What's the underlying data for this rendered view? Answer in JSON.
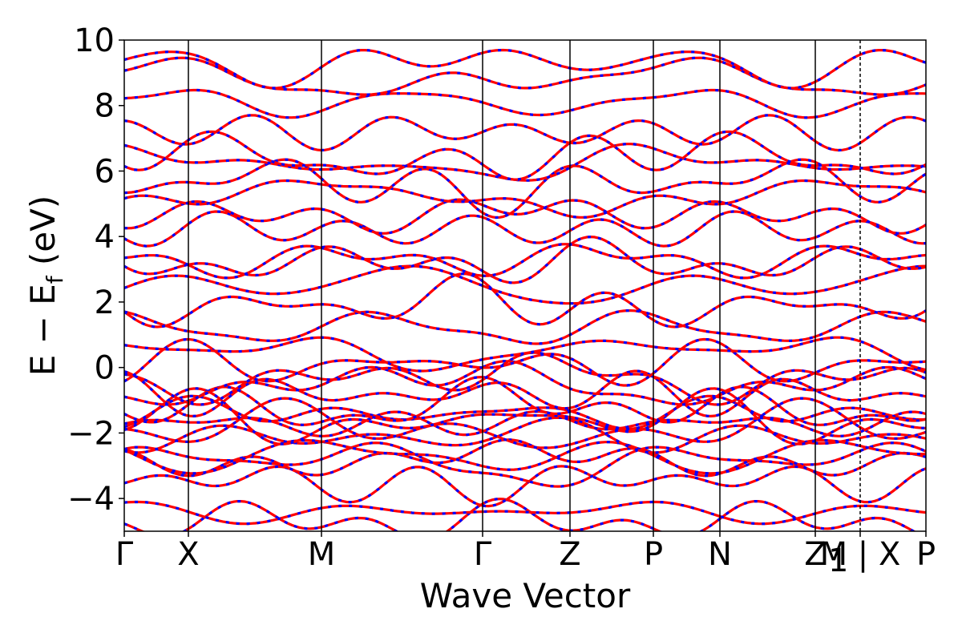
{
  "chart_data": {
    "type": "line",
    "title": "",
    "xlabel": "Wave Vector",
    "ylabel": "E − E",
    "ylabel_sub": "f",
    "ylabel_unit": " (eV)",
    "ylim": [
      -5,
      10
    ],
    "yticks": [
      -4,
      -2,
      0,
      2,
      4,
      6,
      8,
      10
    ],
    "ytick_labels": [
      "−4",
      "−2",
      "0",
      "2",
      "4",
      "6",
      "8",
      "10"
    ],
    "xlim": [
      0,
      1
    ],
    "kpoints": [
      {
        "x": 0.0,
        "label": "Γ"
      },
      {
        "x": 0.08,
        "label": "X"
      },
      {
        "x": 0.246,
        "label": "M"
      },
      {
        "x": 0.447,
        "label": "Γ"
      },
      {
        "x": 0.556,
        "label": "Z"
      },
      {
        "x": 0.66,
        "label": "P"
      },
      {
        "x": 0.743,
        "label": "N"
      },
      {
        "x": 0.862,
        "label": "Z"
      },
      {
        "x": 0.918,
        "label": "M | X"
      },
      {
        "x": 1.0,
        "label": "P"
      }
    ],
    "kpoint_subscripts": [
      {
        "after_label_index": 7,
        "text": "1"
      }
    ],
    "grid": false,
    "series_styles": [
      {
        "name": "",
        "color": "#ff0000",
        "style": "solid"
      },
      {
        "name": "",
        "color": "#0000ff",
        "style": "dashed"
      }
    ],
    "band_energies_at_gamma": [
      -4.7,
      -4.4,
      -3.5,
      -2.9,
      -2.8,
      -2.7,
      -2.1,
      -1.9,
      -1.7,
      -1.6,
      -1.4,
      -1.2,
      -0.8,
      -0.5,
      -0.3,
      0.1,
      0.5,
      1.2,
      1.9,
      2.5,
      3.2,
      3.3,
      4.2,
      4.7,
      5.2,
      5.6,
      6.2,
      6.4,
      7.2,
      8.1,
      8.8,
      9.3
    ]
  }
}
